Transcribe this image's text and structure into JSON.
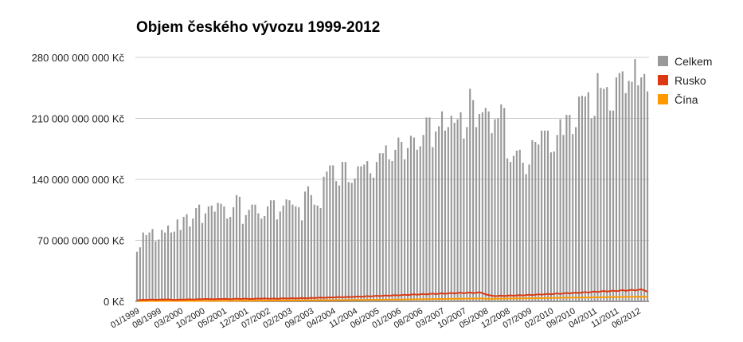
{
  "chart_data": {
    "type": "bar",
    "title": "Objem českého vývozu 1999-2012",
    "xlabel": "",
    "ylabel": "",
    "ylim": [
      0,
      280000000000
    ],
    "y_ticks": [
      {
        "value": 0,
        "label": "0 Kč"
      },
      {
        "value": 70000000000,
        "label": "70 000 000 000 Kč"
      },
      {
        "value": 140000000000,
        "label": "140 000 000 000 Kč"
      },
      {
        "value": 210000000000,
        "label": "210 000 000 000 Kč"
      },
      {
        "value": 280000000000,
        "label": "280 000 000 000 Kč"
      }
    ],
    "x_tick_labels": [
      "01/1999",
      "08/1999",
      "03/2000",
      "10/2000",
      "05/2001",
      "12/2001",
      "07/2002",
      "02/2003",
      "09/2003",
      "04/2004",
      "11/2004",
      "06/2005",
      "01/2006",
      "08/2006",
      "03/2007",
      "10/2007",
      "05/2008",
      "12/2008",
      "07/2009",
      "02/2010",
      "09/2010",
      "04/2011",
      "11/2011",
      "06/2012"
    ],
    "x_start": "01/1999",
    "x_end": "08/2012",
    "grid": true,
    "legend_position": "right",
    "series": [
      {
        "name": "Celkem",
        "type": "bar",
        "color": "#999999",
        "values_billions": [
          57,
          62,
          79,
          76,
          79,
          83,
          69,
          71,
          82,
          79,
          87,
          79,
          80,
          94,
          82,
          97,
          100,
          86,
          95,
          107,
          111,
          90,
          101,
          109,
          110,
          103,
          113,
          112,
          109,
          95,
          97,
          108,
          122,
          120,
          89,
          99,
          105,
          111,
          111,
          101,
          95,
          98,
          109,
          116,
          116,
          94,
          103,
          110,
          117,
          116,
          111,
          109,
          108,
          93,
          126,
          132,
          122,
          111,
          110,
          107,
          143,
          149,
          156,
          156,
          138,
          133,
          160,
          160,
          137,
          136,
          141,
          155,
          155,
          157,
          161,
          147,
          142,
          160,
          170,
          170,
          179,
          163,
          161,
          174,
          188,
          183,
          163,
          176,
          190,
          188,
          174,
          178,
          191,
          211,
          211,
          177,
          195,
          201,
          218,
          196,
          200,
          213,
          205,
          209,
          217,
          187,
          200,
          244,
          231,
          200,
          215,
          217,
          222,
          218,
          193,
          209,
          210,
          226,
          222,
          164,
          160,
          167,
          173,
          174,
          159,
          146,
          157,
          185,
          183,
          180,
          196,
          196,
          196,
          171,
          172,
          191,
          209,
          191,
          214,
          214,
          192,
          200,
          235,
          236,
          235,
          240,
          210,
          213,
          262,
          245,
          244,
          246,
          219,
          219,
          257,
          262,
          264,
          239,
          253,
          252,
          278,
          248,
          257,
          261,
          241
        ]
      },
      {
        "name": "Rusko",
        "type": "line",
        "color": "#dc3912",
        "values_billions": [
          1.2,
          1.5,
          1.8,
          1.6,
          1.9,
          2.1,
          1.8,
          1.9,
          2.2,
          2.0,
          2.3,
          1.9,
          1.6,
          1.8,
          2.0,
          2.1,
          2.2,
          2.4,
          2.0,
          2.3,
          2.5,
          2.4,
          2.7,
          2.6,
          2.5,
          2.4,
          2.7,
          2.6,
          2.9,
          2.7,
          2.4,
          2.8,
          3.1,
          2.7,
          2.9,
          3.2,
          2.6,
          2.8,
          3.0,
          3.2,
          3.0,
          3.4,
          3.1,
          3.0,
          3.3,
          2.9,
          3.2,
          3.6,
          3.2,
          3.4,
          3.7,
          3.3,
          3.6,
          3.9,
          3.5,
          3.7,
          4.0,
          3.8,
          4.1,
          4.3,
          4.0,
          4.3,
          4.6,
          4.4,
          4.7,
          5.0,
          4.6,
          4.9,
          5.2,
          4.9,
          5.3,
          5.6,
          5.2,
          5.6,
          6.0,
          5.6,
          6.0,
          6.4,
          6.0,
          6.4,
          6.8,
          6.3,
          6.8,
          7.2,
          6.7,
          7.2,
          7.6,
          7.1,
          7.7,
          8.1,
          7.5,
          8.0,
          8.5,
          7.9,
          8.5,
          8.9,
          8.2,
          8.8,
          9.3,
          8.6,
          9.2,
          9.6,
          9.0,
          9.6,
          10.0,
          9.2,
          9.8,
          10.2,
          9.4,
          9.9,
          10.4,
          9.4,
          8.0,
          7.2,
          6.5,
          6.0,
          6.2,
          6.6,
          6.1,
          6.5,
          6.9,
          6.4,
          6.8,
          7.2,
          6.7,
          7.2,
          7.6,
          7.1,
          7.6,
          8.1,
          7.6,
          8.1,
          8.6,
          8.0,
          8.6,
          9.1,
          8.5,
          9.1,
          9.6,
          9.0,
          9.6,
          10.1,
          9.5,
          10.2,
          10.7,
          10.0,
          10.8,
          11.3,
          10.6,
          11.4,
          11.9,
          11.1,
          11.8,
          12.3,
          11.5,
          12.3,
          12.9,
          12.0,
          12.7,
          13.3,
          12.4,
          13.2,
          13.8,
          12.5,
          11.0
        ]
      },
      {
        "name": "Čína",
        "type": "line",
        "color": "#ff9900",
        "values_billions": [
          0.3,
          0.3,
          0.4,
          0.3,
          0.4,
          0.4,
          0.3,
          0.4,
          0.4,
          0.4,
          0.4,
          0.4,
          0.4,
          0.4,
          0.4,
          0.5,
          0.5,
          0.5,
          0.5,
          0.5,
          0.5,
          0.5,
          0.5,
          0.6,
          0.6,
          0.6,
          0.6,
          0.6,
          0.7,
          0.6,
          0.7,
          0.7,
          0.7,
          0.7,
          0.8,
          0.8,
          0.7,
          0.8,
          0.8,
          0.8,
          0.8,
          0.9,
          0.9,
          0.9,
          0.9,
          0.9,
          1.0,
          1.0,
          1.0,
          1.0,
          1.1,
          1.0,
          1.1,
          1.1,
          1.1,
          1.2,
          1.2,
          1.2,
          1.2,
          1.3,
          1.3,
          1.3,
          1.4,
          1.3,
          1.4,
          1.4,
          1.4,
          1.5,
          1.5,
          1.5,
          1.6,
          1.6,
          1.6,
          1.7,
          1.7,
          1.7,
          1.8,
          1.8,
          1.8,
          1.9,
          1.9,
          1.9,
          2.0,
          2.0,
          2.1,
          2.1,
          2.2,
          2.2,
          2.3,
          2.3,
          2.4,
          2.4,
          2.5,
          2.5,
          2.6,
          2.6,
          2.7,
          2.7,
          2.8,
          2.8,
          2.9,
          2.9,
          3.0,
          3.0,
          3.1,
          3.0,
          3.1,
          3.1,
          3.2,
          3.2,
          3.3,
          3.2,
          3.0,
          2.9,
          3.0,
          3.0,
          3.1,
          3.1,
          3.2,
          3.2,
          3.3,
          3.3,
          3.4,
          3.4,
          3.5,
          3.5,
          3.6,
          3.6,
          3.7,
          3.7,
          3.8,
          3.8,
          3.9,
          3.9,
          4.0,
          4.0,
          4.1,
          4.1,
          4.2,
          4.2,
          4.3,
          4.3,
          4.4,
          4.4,
          4.5,
          4.5,
          4.6,
          4.6,
          4.7,
          4.7,
          4.8,
          4.8,
          4.9,
          4.9,
          5.0,
          5.0,
          5.1,
          5.1,
          5.2,
          5.2,
          5.3,
          5.3,
          5.4,
          5.3,
          5.2
        ]
      }
    ],
    "legend": [
      {
        "label": "Celkem",
        "color": "#999999"
      },
      {
        "label": "Rusko",
        "color": "#dc3912"
      },
      {
        "label": "Čína",
        "color": "#ff9900"
      }
    ]
  }
}
